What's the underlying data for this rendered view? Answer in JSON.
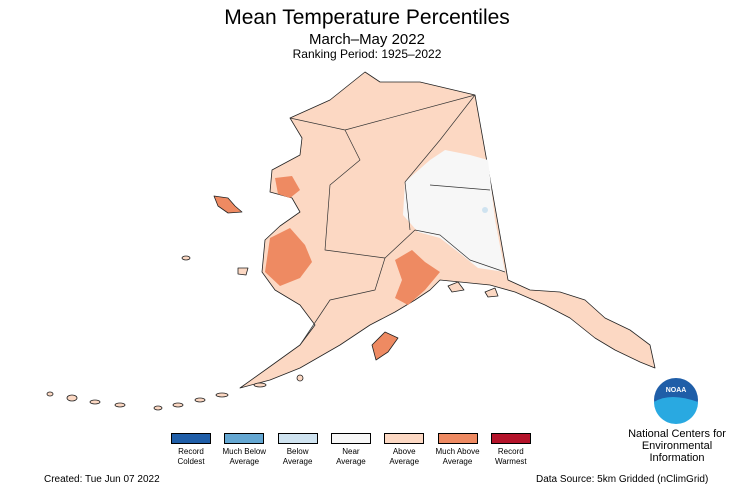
{
  "title": "Mean Temperature Percentiles",
  "subtitle": "March–May 2022",
  "ranking_period": "Ranking Period: 1925–2022",
  "legend": [
    {
      "label": "Record Coldest",
      "color": "#1f5ea8"
    },
    {
      "label": "Much Below Average",
      "color": "#64a7d2"
    },
    {
      "label": "Below Average",
      "color": "#cfe3f0"
    },
    {
      "label": "Near Average",
      "color": "#f7f7f7"
    },
    {
      "label": "Above Average",
      "color": "#fcd8c3"
    },
    {
      "label": "Much Above Average",
      "color": "#ee8a62"
    },
    {
      "label": "Record Warmest",
      "color": "#b4132a"
    }
  ],
  "logo_text": "NOAA",
  "agency": "National Centers for Environmental Information",
  "created": "Created: Tue Jun 07 2022",
  "data_source": "Data Source: 5km Gridded (nClimGrid)"
}
